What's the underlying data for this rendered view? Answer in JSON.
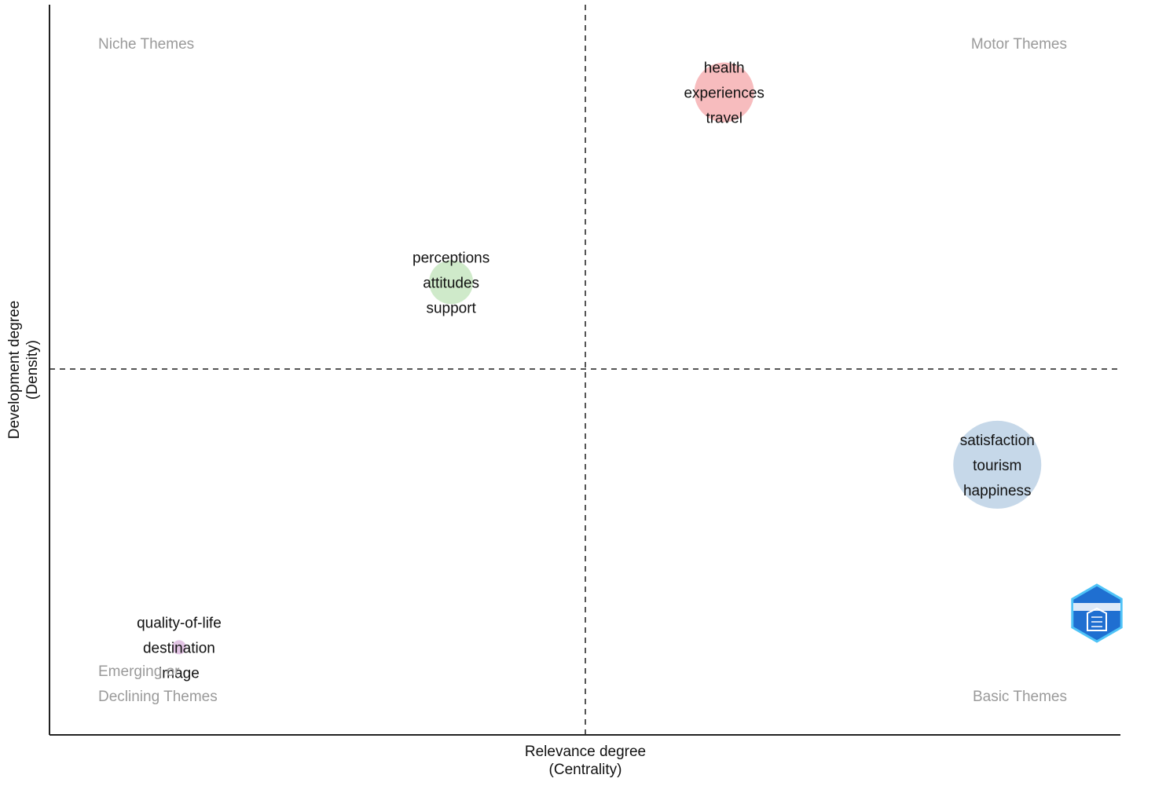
{
  "chart_data": {
    "type": "scatter",
    "subtype": "thematic-map",
    "xlabel": [
      "Relevance degree",
      "(Centrality)"
    ],
    "ylabel": [
      "Development degree",
      "(Density)"
    ],
    "quadrants": {
      "top_left": "Niche Themes",
      "top_right": "Motor Themes",
      "bottom_left": [
        "Emerging or",
        "Declining Themes"
      ],
      "bottom_right": "Basic Themes"
    },
    "grid": false,
    "clusters": [
      {
        "keywords": [
          "health",
          "experiences",
          "travel"
        ],
        "x": 0.63,
        "y": 0.88,
        "size": 38,
        "color": "#f4a6a8"
      },
      {
        "keywords": [
          "perceptions",
          "attitudes",
          "support"
        ],
        "x": 0.375,
        "y": 0.62,
        "size": 28,
        "color": "#bfe3b8"
      },
      {
        "keywords": [
          "satisfaction",
          "tourism",
          "happiness"
        ],
        "x": 0.885,
        "y": 0.37,
        "size": 56,
        "color": "#b3cbe2"
      },
      {
        "keywords": [
          "quality-of-life",
          "destination",
          "image"
        ],
        "x": 0.121,
        "y": 0.12,
        "size": 9,
        "color": "#d9b2dc"
      }
    ],
    "logo": {
      "name": "bibliometrix-logo",
      "color": "#1f6fd1"
    }
  }
}
